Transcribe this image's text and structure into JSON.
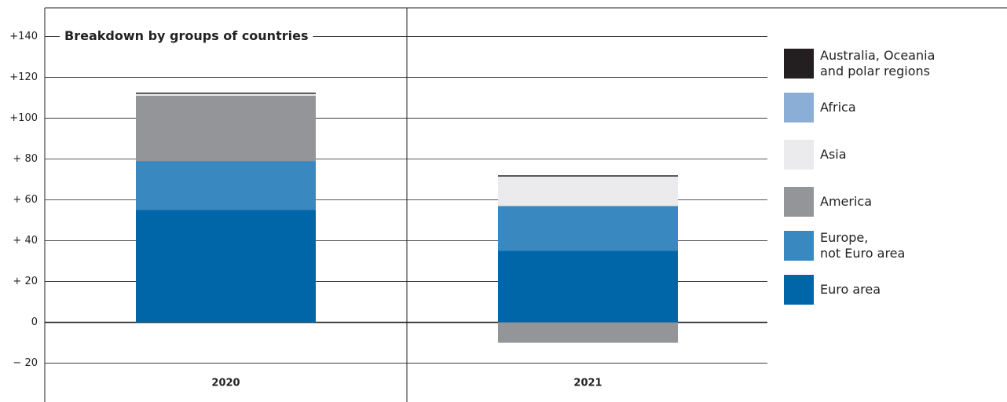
{
  "chart_data": {
    "type": "stacked_bar",
    "subtitle": "Breakdown by groups of countries",
    "categories": [
      "2020",
      "2021"
    ],
    "series": [
      {
        "name": "Euro area",
        "color": "#0066a8",
        "values": [
          55,
          35
        ]
      },
      {
        "name": "Europe,\nnot Euro area",
        "color": "#3a88c0",
        "values": [
          24,
          22
        ]
      },
      {
        "name": "America",
        "color": "#939598",
        "values": [
          32,
          -10
        ]
      },
      {
        "name": "Asia",
        "color": "#ebebed",
        "values": [
          1,
          14.5
        ]
      },
      {
        "name": "Africa",
        "color": "#8aaed6",
        "values": [
          0,
          0
        ]
      },
      {
        "name": "Australia, Oceania\nand polar regions",
        "color": "#231f20",
        "values": [
          0.5,
          0.5
        ]
      }
    ],
    "ylim": [
      -39,
      154
    ],
    "yticks": [
      {
        "value": -20,
        "label": "− 20"
      },
      0,
      {
        "value": 20,
        "label": "+ 20"
      },
      {
        "value": 40,
        "label": "+ 40"
      },
      {
        "value": 60,
        "label": "+ 60"
      },
      {
        "value": 80,
        "label": "+ 80"
      },
      {
        "value": 100,
        "label": "+100"
      },
      {
        "value": 120,
        "label": "+120"
      },
      {
        "value": 140,
        "label": "+140"
      }
    ],
    "grid": true
  }
}
